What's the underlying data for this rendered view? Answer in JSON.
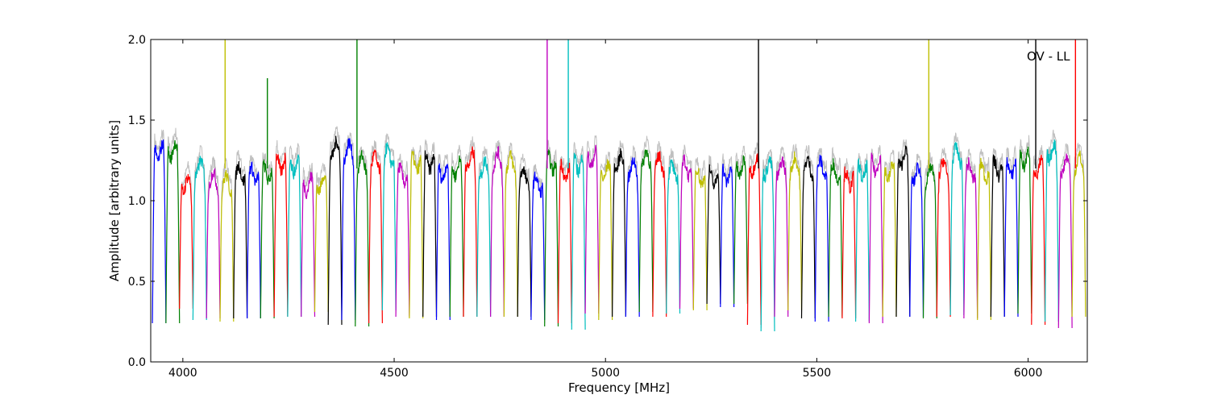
{
  "chart_data": {
    "type": "line",
    "title": "",
    "annotation": "OV - LL",
    "xlabel": "Frequency [MHz]",
    "ylabel": "Amplitude [arbitrary units]",
    "xlim": [
      3924,
      6140
    ],
    "ylim": [
      0.0,
      2.0
    ],
    "xticks": [
      4000,
      4500,
      5000,
      5500,
      6000
    ],
    "yticks": [
      0.0,
      0.5,
      1.0,
      1.5,
      2.0
    ],
    "xtick_labels": [
      "4000",
      "4500",
      "5000",
      "5500",
      "6000"
    ],
    "ytick_labels": [
      "0.0",
      "0.5",
      "1.0",
      "1.5",
      "2.0"
    ],
    "grid": false,
    "background_series": {
      "color": "#bfbfbf",
      "description_only_visual": true
    },
    "color_cycle": [
      "#0000ff",
      "#008000",
      "#ff0000",
      "#00bfbf",
      "#bf00bf",
      "#bfbf00",
      "#000000"
    ],
    "band_width_mhz": 32,
    "band_starts": [
      3928,
      3960,
      3992,
      4024,
      4056,
      4088,
      4120,
      4152,
      4184,
      4216,
      4248,
      4280,
      4312,
      4344,
      4376,
      4408,
      4440,
      4472,
      4504,
      4536,
      4568,
      4600,
      4632,
      4664,
      4696,
      4728,
      4760,
      4792,
      4824,
      4856,
      4888,
      4920,
      4952,
      4984,
      5016,
      5048,
      5080,
      5112,
      5144,
      5176,
      5208,
      5240,
      5272,
      5304,
      5336,
      5368,
      5400,
      5432,
      5464,
      5496,
      5528,
      5560,
      5592,
      5624,
      5656,
      5688,
      5720,
      5752,
      5784,
      5816,
      5848,
      5880,
      5912,
      5944,
      5976,
      6008,
      6040,
      6072,
      6104
    ],
    "band_plateau_levels": [
      1.32,
      1.33,
      1.12,
      1.22,
      1.15,
      1.13,
      1.19,
      1.18,
      1.19,
      1.25,
      1.24,
      1.12,
      1.13,
      1.34,
      1.33,
      1.25,
      1.26,
      1.3,
      1.18,
      1.25,
      1.26,
      1.2,
      1.22,
      1.27,
      1.22,
      1.27,
      1.25,
      1.17,
      1.12,
      1.25,
      1.2,
      1.25,
      1.28,
      1.2,
      1.26,
      1.22,
      1.28,
      1.25,
      1.2,
      1.22,
      1.17,
      1.16,
      1.18,
      1.22,
      1.24,
      1.22,
      1.22,
      1.24,
      1.23,
      1.22,
      1.2,
      1.15,
      1.2,
      1.24,
      1.2,
      1.28,
      1.18,
      1.18,
      1.22,
      1.3,
      1.2,
      1.2,
      1.22,
      1.22,
      1.28,
      1.22,
      1.32,
      1.24,
      1.25
    ],
    "band_min_levels": [
      0.26,
      0.26,
      0.35,
      0.28,
      0.29,
      0.27,
      0.29,
      0.29,
      0.29,
      0.3,
      0.3,
      0.3,
      0.33,
      0.25,
      0.28,
      0.24,
      0.26,
      0.34,
      0.3,
      0.29,
      0.3,
      0.28,
      0.3,
      0.3,
      0.3,
      0.3,
      0.3,
      0.3,
      0.28,
      0.24,
      0.26,
      0.22,
      0.32,
      0.28,
      0.3,
      0.3,
      0.33,
      0.3,
      0.32,
      0.35,
      0.34,
      0.38,
      0.36,
      0.38,
      0.25,
      0.21,
      0.3,
      0.34,
      0.29,
      0.27,
      0.3,
      0.29,
      0.27,
      0.26,
      0.3,
      0.3,
      0.3,
      0.29,
      0.3,
      0.31,
      0.29,
      0.28,
      0.3,
      0.3,
      0.32,
      0.25,
      0.27,
      0.23,
      0.3
    ],
    "spikes": [
      {
        "x": 4100,
        "y": 2.0,
        "color": "#bfbf00"
      },
      {
        "x": 4200,
        "y": 1.76,
        "color": "#008000"
      },
      {
        "x": 4412,
        "y": 2.0,
        "color": "#008000"
      },
      {
        "x": 4862,
        "y": 2.0,
        "color": "#bf00bf"
      },
      {
        "x": 4912,
        "y": 2.0,
        "color": "#00bfbf"
      },
      {
        "x": 5362,
        "y": 2.0,
        "color": "#000000"
      },
      {
        "x": 5765,
        "y": 2.0,
        "color": "#bfbf00"
      },
      {
        "x": 6018,
        "y": 2.0,
        "color": "#000000"
      },
      {
        "x": 6112,
        "y": 2.0,
        "color": "#ff0000"
      }
    ]
  }
}
